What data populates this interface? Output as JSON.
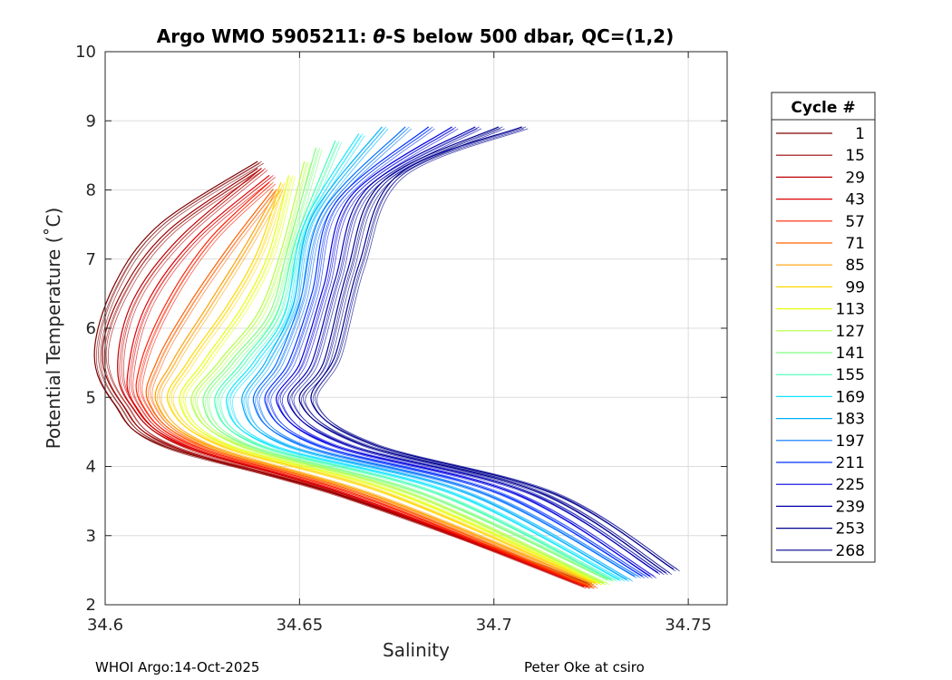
{
  "chart_data": {
    "type": "line",
    "title_prefix": "Argo WMO 5905211: ",
    "title_theta": "θ",
    "title_suffix": "-S below 500 dbar,  QC=(1,2)",
    "xlabel": "Salinity",
    "ylabel": "Potential Temperature (˚C)",
    "xlim": [
      34.6,
      34.76
    ],
    "ylim": [
      2,
      10
    ],
    "xticks": [
      34.6,
      34.65,
      34.7,
      34.75
    ],
    "xtick_labels": [
      "34.6",
      "34.65",
      "34.7",
      "34.75"
    ],
    "yticks": [
      2,
      3,
      4,
      5,
      6,
      7,
      8,
      9,
      10
    ],
    "ytick_labels": [
      "2",
      "3",
      "4",
      "5",
      "6",
      "7",
      "8",
      "9",
      "10"
    ],
    "grid": true,
    "legend_title": "Cycle #",
    "legend_position": "outside-right",
    "legend_entries": [
      "1",
      "15",
      "29",
      "43",
      "57",
      "71",
      "85",
      "99",
      "113",
      "127",
      "141",
      "155",
      "169",
      "183",
      "197",
      "211",
      "225",
      "239",
      "253",
      "268"
    ],
    "legend_colors": [
      "#7f0000",
      "#9c0000",
      "#c00000",
      "#e00000",
      "#ff2000",
      "#ff6000",
      "#ff9f00",
      "#ffd800",
      "#e6ff10",
      "#b4ff44",
      "#80ff80",
      "#44ffb4",
      "#10e6ff",
      "#00b0ff",
      "#0070ff",
      "#0030ff",
      "#0000e0",
      "#0000b0",
      "#000090",
      "#00008f"
    ],
    "series": [
      {
        "name": "1",
        "s": [
          34.64,
          34.615,
          34.603,
          34.598,
          34.603,
          34.615,
          34.66,
          34.725
        ],
        "t": [
          8.4,
          7.5,
          6.6,
          5.6,
          4.9,
          4.3,
          3.6,
          2.3
        ]
      },
      {
        "name": "15",
        "s": [
          34.64,
          34.617,
          34.605,
          34.6,
          34.605,
          34.617,
          34.662,
          34.724
        ],
        "t": [
          8.3,
          7.4,
          6.5,
          5.6,
          4.9,
          4.3,
          3.55,
          2.3
        ]
      },
      {
        "name": "29",
        "s": [
          34.641,
          34.62,
          34.608,
          34.604,
          34.607,
          34.62,
          34.664,
          34.724
        ],
        "t": [
          8.3,
          7.3,
          6.4,
          5.5,
          4.9,
          4.3,
          3.55,
          2.25
        ]
      },
      {
        "name": "43",
        "s": [
          34.643,
          34.624,
          34.612,
          34.607,
          34.608,
          34.621,
          34.665,
          34.725
        ],
        "t": [
          8.2,
          7.3,
          6.4,
          5.5,
          4.9,
          4.3,
          3.55,
          2.25
        ]
      },
      {
        "name": "57",
        "s": [
          34.643,
          34.628,
          34.617,
          34.61,
          34.61,
          34.623,
          34.667,
          34.725
        ],
        "t": [
          8.1,
          7.3,
          6.4,
          5.5,
          4.9,
          4.3,
          3.55,
          2.25
        ]
      },
      {
        "name": "71",
        "s": [
          34.644,
          34.633,
          34.622,
          34.614,
          34.612,
          34.625,
          34.669,
          34.726
        ],
        "t": [
          8.0,
          7.2,
          6.3,
          5.5,
          4.9,
          4.3,
          3.55,
          2.25
        ]
      },
      {
        "name": "85",
        "s": [
          34.645,
          34.637,
          34.627,
          34.618,
          34.614,
          34.627,
          34.671,
          34.726
        ],
        "t": [
          8.0,
          7.2,
          6.3,
          5.5,
          4.9,
          4.3,
          3.55,
          2.3
        ]
      },
      {
        "name": "99",
        "s": [
          34.646,
          34.64,
          34.632,
          34.622,
          34.617,
          34.63,
          34.673,
          34.727
        ],
        "t": [
          8.1,
          7.1,
          6.3,
          5.5,
          4.9,
          4.3,
          3.6,
          2.3
        ]
      },
      {
        "name": "113",
        "s": [
          34.648,
          34.643,
          34.636,
          34.626,
          34.62,
          34.632,
          34.676,
          34.728
        ],
        "t": [
          8.2,
          7.1,
          6.3,
          5.5,
          4.9,
          4.3,
          3.6,
          2.3
        ]
      },
      {
        "name": "127",
        "s": [
          34.652,
          34.646,
          34.64,
          34.63,
          34.623,
          34.635,
          34.679,
          34.729
        ],
        "t": [
          8.4,
          7.1,
          6.2,
          5.5,
          4.9,
          4.3,
          3.6,
          2.3
        ]
      },
      {
        "name": "141",
        "s": [
          34.655,
          34.648,
          34.643,
          34.633,
          34.626,
          34.637,
          34.682,
          34.73
        ],
        "t": [
          8.6,
          7.2,
          6.2,
          5.5,
          4.9,
          4.3,
          3.6,
          2.35
        ]
      },
      {
        "name": "155",
        "s": [
          34.66,
          34.65,
          34.645,
          34.636,
          34.629,
          34.64,
          34.686,
          34.731
        ],
        "t": [
          8.7,
          7.3,
          6.2,
          5.5,
          4.9,
          4.3,
          3.6,
          2.35
        ]
      },
      {
        "name": "169",
        "s": [
          34.666,
          34.652,
          34.647,
          34.639,
          34.632,
          34.643,
          34.69,
          34.733
        ],
        "t": [
          8.8,
          7.5,
          6.2,
          5.5,
          4.9,
          4.3,
          3.6,
          2.35
        ]
      },
      {
        "name": "183",
        "s": [
          34.672,
          34.654,
          34.649,
          34.642,
          34.636,
          34.647,
          34.694,
          34.735
        ],
        "t": [
          8.9,
          7.6,
          6.3,
          5.5,
          4.9,
          4.3,
          3.6,
          2.35
        ]
      },
      {
        "name": "197",
        "s": [
          34.678,
          34.657,
          34.651,
          34.645,
          34.639,
          34.651,
          34.698,
          34.737
        ],
        "t": [
          8.9,
          7.7,
          6.4,
          5.5,
          4.9,
          4.3,
          3.6,
          2.4
        ]
      },
      {
        "name": "211",
        "s": [
          34.684,
          34.66,
          34.654,
          34.648,
          34.642,
          34.655,
          34.702,
          34.739
        ],
        "t": [
          8.9,
          7.8,
          6.5,
          5.5,
          4.9,
          4.3,
          3.6,
          2.4
        ]
      },
      {
        "name": "225",
        "s": [
          34.69,
          34.664,
          34.657,
          34.651,
          34.645,
          34.659,
          34.706,
          34.741
        ],
        "t": [
          8.9,
          7.9,
          6.6,
          5.5,
          4.9,
          4.3,
          3.6,
          2.4
        ]
      },
      {
        "name": "239",
        "s": [
          34.696,
          34.668,
          34.66,
          34.654,
          34.648,
          34.663,
          34.71,
          34.743
        ],
        "t": [
          8.9,
          8.0,
          6.7,
          5.5,
          4.9,
          4.3,
          3.6,
          2.45
        ]
      },
      {
        "name": "253",
        "s": [
          34.702,
          34.672,
          34.663,
          34.657,
          34.651,
          34.667,
          34.713,
          34.745
        ],
        "t": [
          8.9,
          8.1,
          6.8,
          5.5,
          4.9,
          4.3,
          3.6,
          2.45
        ]
      },
      {
        "name": "268",
        "s": [
          34.708,
          34.676,
          34.666,
          34.66,
          34.654,
          34.67,
          34.716,
          34.747
        ],
        "t": [
          8.9,
          8.2,
          6.9,
          5.6,
          4.9,
          4.3,
          3.6,
          2.5
        ]
      }
    ]
  },
  "footer": {
    "left": "WHOI Argo:14-Oct-2025",
    "right": "Peter Oke at csiro"
  }
}
